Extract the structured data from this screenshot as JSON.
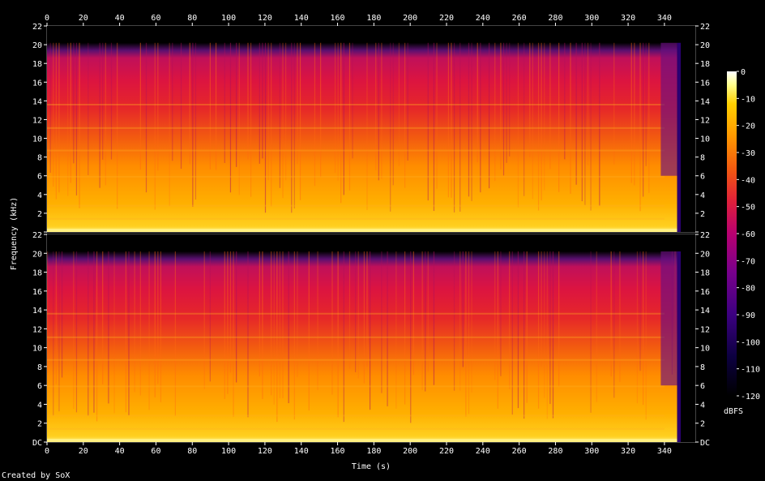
{
  "chart_data": {
    "type": "heatmap",
    "title": "",
    "xlabel": "Time (s)",
    "ylabel": "Frequency (kHz)",
    "x_ticks": [
      0,
      20,
      40,
      60,
      80,
      100,
      120,
      140,
      160,
      180,
      200,
      220,
      240,
      260,
      280,
      300,
      320,
      340
    ],
    "xlim": [
      0,
      357
    ],
    "channels": [
      {
        "y_ticks": [
          "",
          "2",
          "4",
          "6",
          "8",
          "10",
          "12",
          "14",
          "16",
          "18",
          "20",
          "22"
        ],
        "ylim_khz": [
          0,
          22
        ]
      },
      {
        "y_ticks": [
          "DC",
          "2",
          "4",
          "6",
          "8",
          "10",
          "12",
          "14",
          "16",
          "18",
          "20",
          "22"
        ],
        "ylim_khz": [
          0,
          22
        ]
      }
    ],
    "colorbar": {
      "label": "dBFS",
      "ticks": [
        0,
        -10,
        -20,
        -30,
        -40,
        -50,
        -60,
        -70,
        -80,
        -90,
        -100,
        -110,
        -120
      ],
      "range": [
        -120,
        0
      ]
    },
    "colors": [
      "#000000",
      "#1a0050",
      "#4b0080",
      "#8a0090",
      "#c0005a",
      "#e01e1e",
      "#f26010",
      "#ffa000",
      "#ffd000",
      "#ffff80",
      "#ffffff"
    ]
  },
  "footer": {
    "credit": "Created by SoX"
  }
}
